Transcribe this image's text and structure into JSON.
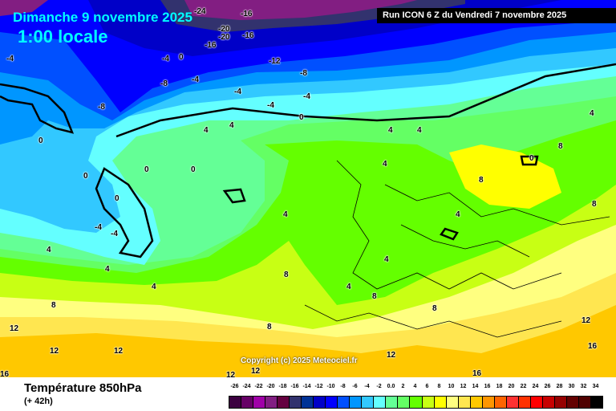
{
  "header": {
    "date": "Dimanche 9 novembre 2025",
    "local_time": "1:00 locale",
    "run_info": "Run ICON 6 Z du Vendredi 7 novembre 2025"
  },
  "footer": {
    "parameter": "Température 850hPa",
    "lead_time": "(+ 42h)",
    "copyright": "Copyright (c) 2025 Meteociel.fr"
  },
  "legend": {
    "labels": [
      "-26",
      "-24",
      "-22",
      "-20",
      "-18",
      "-16",
      "-14",
      "-12",
      "-10",
      "-8",
      "-6",
      "-4",
      "-2",
      "0.0",
      "2",
      "4",
      "6",
      "8",
      "10",
      "12",
      "14",
      "16",
      "18",
      "20",
      "22",
      "24",
      "26",
      "28",
      "30",
      "32",
      "34"
    ],
    "colors": [
      "#3c0040",
      "#660066",
      "#a000a8",
      "#821e82",
      "#640040",
      "#32326e",
      "#003296",
      "#0000c8",
      "#0000ff",
      "#0050ff",
      "#0096ff",
      "#32c8ff",
      "#64ffff",
      "#64ff96",
      "#64ff64",
      "#64ff00",
      "#c8ff14",
      "#ffff00",
      "#ffff80",
      "#ffe650",
      "#ffc800",
      "#ff9600",
      "#ff6400",
      "#ff3232",
      "#ff3200",
      "#ff0000",
      "#c80000",
      "#960000",
      "#640000",
      "#500000",
      "#000000"
    ]
  },
  "map": {
    "contour_labels": [
      "-16",
      "-16",
      "-20",
      "-24",
      "-20",
      "-16",
      "-12",
      "-8",
      "-4",
      "-4",
      "0",
      "4",
      "4",
      "0",
      "0",
      "0",
      "4",
      "8",
      "8",
      "12",
      "12",
      "12",
      "8",
      "4",
      "4",
      "-4",
      "-4",
      "0",
      "-8",
      "-4",
      "0",
      "-4",
      "0",
      "4",
      "12",
      "12",
      "16",
      "16",
      "12",
      "8",
      "4",
      "8",
      "4",
      "4",
      "8",
      "4",
      "8",
      "8",
      "4",
      "16",
      "12",
      "-8",
      "-4",
      "-4",
      "0",
      "4",
      "4"
    ]
  }
}
